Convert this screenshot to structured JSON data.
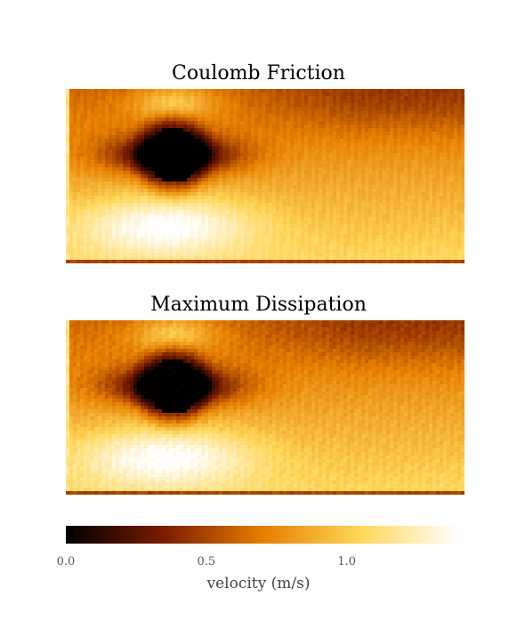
{
  "chart_data": [
    {
      "type": "heatmap",
      "title": "Coulomb Friction",
      "colormap": "afmhot",
      "value_range": [
        0.0,
        1.4
      ],
      "regions": [
        {
          "region": "obstacle interior",
          "velocity": 0.0
        },
        {
          "region": "wake behind obstacle",
          "velocity": 0.3
        },
        {
          "region": "flow above obstacle",
          "velocity": 1.1
        },
        {
          "region": "flow below obstacle",
          "velocity": 1.35
        },
        {
          "region": "upper far field",
          "velocity": 0.65
        },
        {
          "region": "lower far field",
          "velocity": 1.05
        },
        {
          "region": "left inflow edge",
          "velocity": 1.1
        },
        {
          "region": "bottom wall",
          "velocity": 0.5
        }
      ]
    },
    {
      "type": "heatmap",
      "title": "Maximum Dissipation",
      "colormap": "afmhot",
      "value_range": [
        0.0,
        1.4
      ],
      "regions": [
        {
          "region": "obstacle interior",
          "velocity": 0.0
        },
        {
          "region": "wake behind obstacle",
          "velocity": 0.3
        },
        {
          "region": "flow above obstacle",
          "velocity": 1.1
        },
        {
          "region": "flow below obstacle",
          "velocity": 1.35
        },
        {
          "region": "upper far field",
          "velocity": 0.65
        },
        {
          "region": "lower far field",
          "velocity": 1.05
        },
        {
          "region": "left inflow edge",
          "velocity": 1.1
        },
        {
          "region": "bottom wall",
          "velocity": 0.5
        }
      ]
    }
  ],
  "colorbar": {
    "label": "velocity (m/s)",
    "ticks": [
      {
        "value": 0.0,
        "label": "0.0"
      },
      {
        "value": 0.5,
        "label": "0.5"
      },
      {
        "value": 1.0,
        "label": "1.0"
      }
    ],
    "range": [
      0.0,
      1.4
    ],
    "colors": [
      "#000000",
      "#7a1c00",
      "#e67e00",
      "#ffd75a",
      "#ffffff"
    ]
  }
}
